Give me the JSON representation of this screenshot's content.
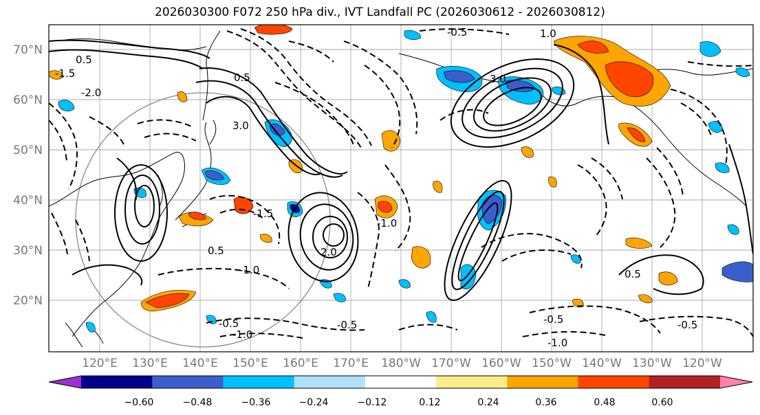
{
  "title": "2026030300 F072 250 hPa div., IVT Landfall PC (2026030612 - 2026030812)",
  "map": {
    "lat_labels": [
      "70°N",
      "60°N",
      "50°N",
      "40°N",
      "30°N",
      "20°N"
    ],
    "lon_labels": [
      "120°E",
      "130°E",
      "140°E",
      "150°E",
      "160°E",
      "170°E",
      "180°W",
      "170°W",
      "160°W",
      "150°W",
      "140°W",
      "130°W",
      "120°W"
    ],
    "contour_labels": [
      "-0.5",
      "1.0",
      "-1.5",
      "-2.0",
      "0.5",
      "3.0",
      "-1.5",
      "-1.0",
      "2.0",
      "3.0",
      "-0.5",
      "-0.5",
      "-1.0",
      "-1.0",
      "0.5",
      "0.5",
      "-0.5",
      "-1.0",
      "-0.5",
      "1.0"
    ]
  },
  "colorbar": {
    "colors": [
      "#9932CC",
      "#00008B",
      "#3A5FCD",
      "#00BFFF",
      "#B0E2FF",
      "#FFFFFF",
      "#FFEC8B",
      "#FFA500",
      "#FF4500",
      "#B22222",
      "#FF82AB"
    ],
    "tick_labels": [
      "−0.60",
      "−0.48",
      "−0.36",
      "−0.24",
      "−0.12",
      "0.12",
      "0.24",
      "0.36",
      "0.48",
      "0.60"
    ]
  }
}
